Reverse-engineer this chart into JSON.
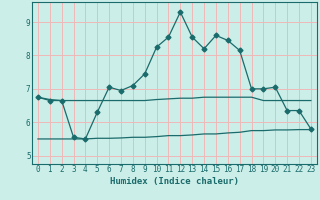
{
  "title": "",
  "xlabel": "Humidex (Indice chaleur)",
  "bg_color": "#cceee8",
  "plot_bg_color": "#cceee8",
  "grid_color": "#f0b8b8",
  "line_color": "#1a6b6b",
  "xlim": [
    -0.5,
    23.5
  ],
  "ylim": [
    4.75,
    9.6
  ],
  "xticks": [
    0,
    1,
    2,
    3,
    4,
    5,
    6,
    7,
    8,
    9,
    10,
    11,
    12,
    13,
    14,
    15,
    16,
    17,
    18,
    19,
    20,
    21,
    22,
    23
  ],
  "yticks": [
    5,
    6,
    7,
    8,
    9
  ],
  "curve1_x": [
    0,
    1,
    2,
    3,
    4,
    5,
    6,
    7,
    8,
    9,
    10,
    11,
    12,
    13,
    14,
    15,
    16,
    17,
    18,
    19,
    20,
    21,
    22,
    23
  ],
  "curve1_y": [
    6.75,
    6.65,
    6.65,
    5.55,
    5.5,
    6.3,
    7.05,
    6.95,
    7.1,
    7.45,
    8.25,
    8.55,
    9.3,
    8.55,
    8.2,
    8.6,
    8.45,
    8.15,
    7.0,
    7.0,
    7.05,
    6.35,
    6.35,
    5.8
  ],
  "curve2_x": [
    0,
    1,
    2,
    3,
    4,
    5,
    6,
    7,
    8,
    9,
    10,
    11,
    12,
    13,
    14,
    15,
    16,
    17,
    18,
    19,
    20,
    21,
    22,
    23
  ],
  "curve2_y": [
    6.75,
    6.68,
    6.65,
    6.65,
    6.65,
    6.65,
    6.65,
    6.65,
    6.65,
    6.65,
    6.68,
    6.7,
    6.72,
    6.72,
    6.75,
    6.75,
    6.75,
    6.75,
    6.75,
    6.65,
    6.65,
    6.65,
    6.65,
    6.65
  ],
  "curve3_x": [
    0,
    1,
    2,
    3,
    4,
    5,
    6,
    7,
    8,
    9,
    10,
    11,
    12,
    13,
    14,
    15,
    16,
    17,
    18,
    19,
    20,
    21,
    22,
    23
  ],
  "curve3_y": [
    5.5,
    5.5,
    5.5,
    5.5,
    5.5,
    5.52,
    5.52,
    5.53,
    5.55,
    5.55,
    5.57,
    5.6,
    5.6,
    5.62,
    5.65,
    5.65,
    5.68,
    5.7,
    5.75,
    5.75,
    5.77,
    5.77,
    5.78,
    5.78
  ]
}
